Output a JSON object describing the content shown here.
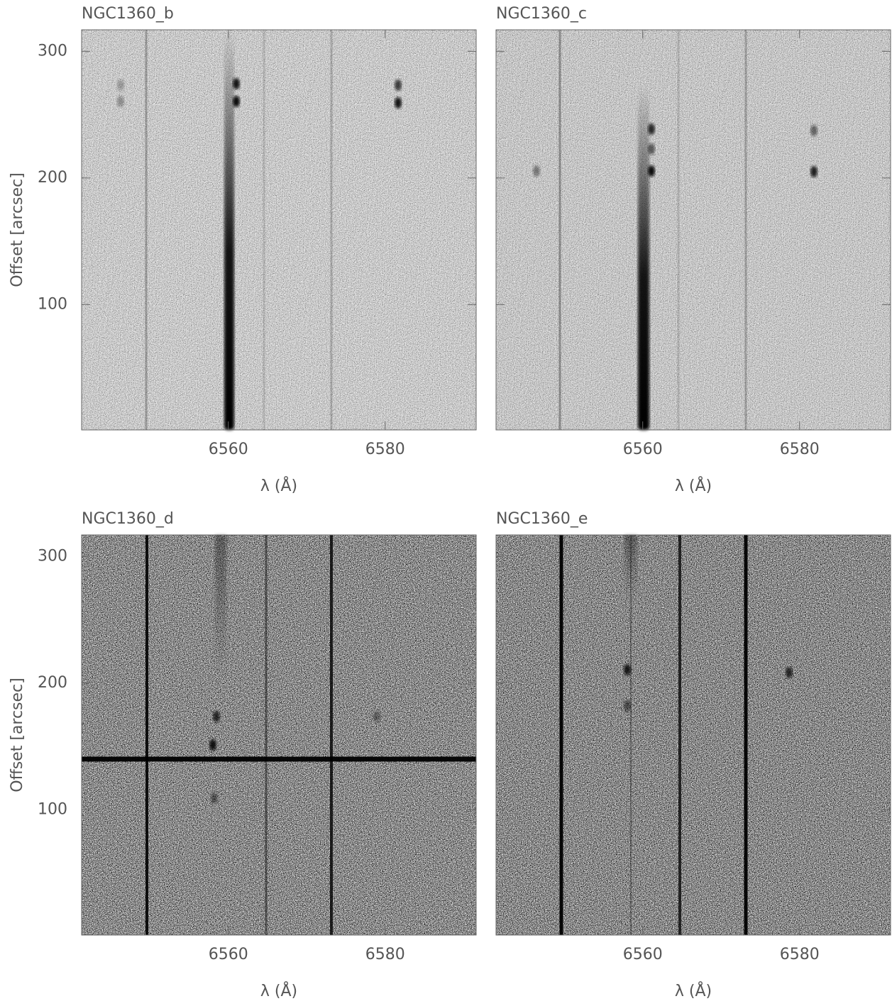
{
  "chart_data": [
    {
      "type": "image",
      "title": "NGC1360_b",
      "xlabel": "λ (Å)",
      "ylabel": "Offset [arcsec]",
      "show_ytick_labels": true,
      "xlim": [
        6541.3,
        6591.6
      ],
      "ylim": [
        1,
        317
      ],
      "xticks": [
        6560,
        6580
      ],
      "yticks": [
        100,
        200,
        300
      ]
    },
    {
      "type": "image",
      "title": "NGC1360_c",
      "xlabel": "λ (Å)",
      "show_ytick_labels": false,
      "xlim": [
        6541.3,
        6591.6
      ],
      "ylim": [
        1,
        317
      ],
      "xticks": [
        6560,
        6580
      ],
      "yticks": [
        100,
        200,
        300
      ]
    },
    {
      "type": "image",
      "title": "NGC1360_d",
      "xlabel": "λ (Å)",
      "ylabel": "Offset [arcsec]",
      "show_ytick_labels": true,
      "xlim": [
        6541.3,
        6591.6
      ],
      "ylim": [
        1,
        317
      ],
      "xticks": [
        6560,
        6580
      ],
      "yticks": [
        100,
        200,
        300
      ]
    },
    {
      "type": "image",
      "title": "NGC1360_e",
      "xlabel": "λ (Å)",
      "show_ytick_labels": false,
      "xlim": [
        6541.3,
        6591.6
      ],
      "ylim": [
        1,
        317
      ],
      "xticks": [
        6560,
        6580
      ],
      "yticks": [
        100,
        200,
        300
      ]
    }
  ]
}
